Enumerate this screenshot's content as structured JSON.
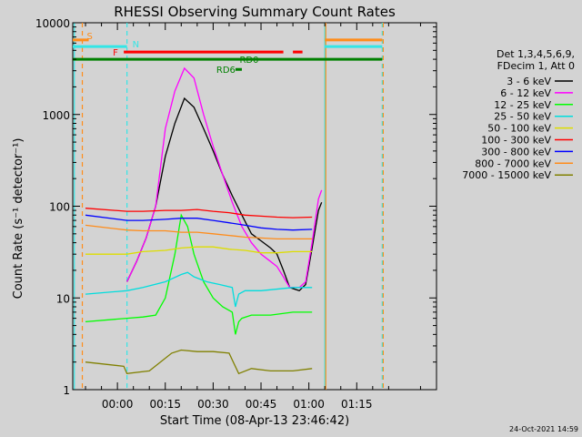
{
  "chart_data": {
    "type": "line",
    "title": "RHESSI Observing Summary Count Rates",
    "xlabel": "Start Time (08-Apr-13 23:46:42)",
    "ylabel": "Count Rate (s⁻¹ detector⁻¹)",
    "xlim_minutes": [
      -14,
      100
    ],
    "ylim": [
      1,
      10000
    ],
    "y_scale": "log",
    "x_ticks": [
      {
        "min": 0,
        "label": "00:00"
      },
      {
        "min": 15,
        "label": "00:15"
      },
      {
        "min": 30,
        "label": "00:30"
      },
      {
        "min": 45,
        "label": "00:45"
      },
      {
        "min": 60,
        "label": "01:00"
      },
      {
        "min": 75,
        "label": "01:15"
      }
    ],
    "y_ticks": [
      {
        "value": 1,
        "label": "1"
      },
      {
        "value": 10,
        "label": "10"
      },
      {
        "value": 100,
        "label": "100"
      },
      {
        "value": 1000,
        "label": "1000"
      },
      {
        "value": 10000,
        "label": "10000"
      }
    ],
    "legend_header": [
      "Det 1,3,4,5,6,9,",
      "FDecim 1, Att 0"
    ],
    "legend_placement": "right",
    "timestamp": "24-Oct-2021 14:59",
    "flag_labels": {
      "S": "S",
      "N": "N",
      "F": "F",
      "RD0": "RD0",
      "RD6": "RD6"
    },
    "flags": [
      {
        "label": "S",
        "color": "#ff8c1a",
        "y": 6500,
        "segments": [
          [
            -14,
            -9
          ],
          [
            65,
            83
          ]
        ]
      },
      {
        "label": "N",
        "color": "#33e6e6",
        "y": 5500,
        "segments": [
          [
            -14,
            3
          ],
          [
            65,
            83
          ]
        ]
      },
      {
        "label": "F",
        "color": "#ff0000",
        "y": 4800,
        "segments": [
          [
            2,
            52
          ],
          [
            55,
            58
          ]
        ]
      },
      {
        "label": "RD0",
        "color": "#008000",
        "y": 4000,
        "segments": [
          [
            -14,
            83
          ]
        ]
      },
      {
        "label": "RD6",
        "color": "#008000",
        "y": 3100,
        "segments": [
          [
            37,
            39
          ]
        ]
      }
    ],
    "vlines": [
      {
        "x": -13.5,
        "color": "#33e6e6",
        "style": "solid"
      },
      {
        "x": -11,
        "color": "#ff8c1a",
        "style": "dashed"
      },
      {
        "x": 3,
        "color": "#33e6e6",
        "style": "dashed"
      },
      {
        "x": 65,
        "color": "#33e6e6",
        "style": "solid"
      },
      {
        "x": 65.3,
        "color": "#ff8c1a",
        "style": "solid"
      },
      {
        "x": 83,
        "color": "#33e6e6",
        "style": "dashed"
      },
      {
        "x": 83.3,
        "color": "#ff8c1a",
        "style": "dashed"
      }
    ],
    "series": [
      {
        "name": "3 - 6 keV",
        "color": "#000000",
        "x": [
          3,
          6,
          9,
          12,
          15,
          18,
          21,
          24,
          27,
          30,
          33,
          36,
          39,
          42,
          45,
          48,
          50,
          52,
          54,
          57,
          59,
          61,
          63,
          64
        ],
        "y": [
          15,
          25,
          45,
          100,
          350,
          800,
          1500,
          1200,
          700,
          400,
          220,
          130,
          80,
          50,
          42,
          35,
          30,
          20,
          13,
          12,
          14,
          35,
          90,
          110
        ]
      },
      {
        "name": "6 - 12 keV",
        "color": "#ff00ff",
        "x": [
          3,
          6,
          9,
          12,
          15,
          18,
          21,
          24,
          27,
          30,
          33,
          36,
          39,
          42,
          45,
          48,
          50,
          52,
          54,
          57,
          59,
          61,
          63,
          64
        ],
        "y": [
          15,
          25,
          45,
          100,
          700,
          1800,
          3200,
          2500,
          1000,
          450,
          220,
          110,
          60,
          40,
          30,
          25,
          22,
          17,
          13,
          13,
          15,
          40,
          120,
          150
        ]
      },
      {
        "name": "12 - 25 keV",
        "color": "#00ff00",
        "x": [
          -10,
          3,
          8,
          12,
          15,
          18,
          20,
          22,
          24,
          27,
          30,
          33,
          36,
          37,
          38,
          39,
          42,
          48,
          55,
          61
        ],
        "y": [
          5.5,
          6,
          6.2,
          6.5,
          10,
          30,
          80,
          60,
          30,
          15,
          10,
          8,
          7,
          4,
          5.5,
          6,
          6.5,
          6.5,
          7,
          7
        ]
      },
      {
        "name": "25 - 50 keV",
        "color": "#00dddd",
        "x": [
          -10,
          3,
          8,
          15,
          20,
          22,
          24,
          28,
          32,
          36,
          37,
          38,
          40,
          45,
          55,
          61
        ],
        "y": [
          11,
          12,
          13,
          15,
          18,
          19,
          17,
          15,
          14,
          13,
          8,
          11,
          12,
          12,
          13,
          13
        ]
      },
      {
        "name": "50 - 100 keV",
        "color": "#dddd00",
        "x": [
          -10,
          3,
          8,
          15,
          20,
          25,
          30,
          35,
          40,
          45,
          50,
          55,
          61
        ],
        "y": [
          30,
          30,
          32,
          33,
          35,
          36,
          36,
          34,
          33,
          31,
          31,
          32,
          32
        ]
      },
      {
        "name": "100 - 300 keV",
        "color": "#ff0000",
        "x": [
          -10,
          3,
          8,
          15,
          20,
          25,
          30,
          35,
          40,
          45,
          50,
          55,
          61
        ],
        "y": [
          95,
          88,
          88,
          90,
          90,
          92,
          88,
          85,
          80,
          78,
          76,
          75,
          76
        ]
      },
      {
        "name": "300 - 800 keV",
        "color": "#0000ff",
        "x": [
          -10,
          3,
          8,
          15,
          20,
          25,
          30,
          35,
          40,
          45,
          50,
          55,
          61
        ],
        "y": [
          80,
          70,
          70,
          72,
          74,
          74,
          70,
          66,
          62,
          58,
          56,
          55,
          56
        ]
      },
      {
        "name": "800 - 7000 keV",
        "color": "#ff8c1a",
        "x": [
          -10,
          3,
          8,
          15,
          20,
          25,
          30,
          35,
          40,
          45,
          50,
          55,
          61
        ],
        "y": [
          62,
          55,
          54,
          54,
          52,
          52,
          50,
          48,
          46,
          45,
          44,
          44,
          44
        ]
      },
      {
        "name": "7000 - 15000 keV",
        "color": "#808000",
        "x": [
          -10,
          2,
          3,
          10,
          17,
          20,
          25,
          30,
          35,
          38,
          42,
          48,
          55,
          61
        ],
        "y": [
          2,
          1.8,
          1.5,
          1.6,
          2.5,
          2.7,
          2.6,
          2.6,
          2.5,
          1.5,
          1.7,
          1.6,
          1.6,
          1.7
        ]
      }
    ]
  }
}
